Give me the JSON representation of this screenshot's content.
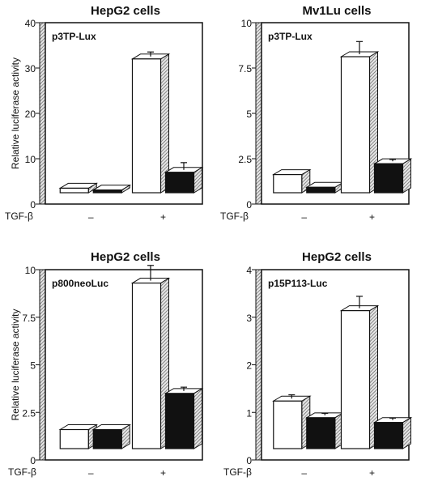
{
  "figure": {
    "x_axis_label": "TGF-β",
    "y_axis_label": "Relative luciferase activity",
    "colors": {
      "white_bar": "#ffffff",
      "black_bar": "#111111",
      "hatch": "#555555",
      "axis": "#111111"
    }
  },
  "chart_data": [
    {
      "type": "bar",
      "title": "HepG2 cells",
      "condition_label": "p3TP-Lux",
      "xlabel": "TGF-β",
      "ylabel": "Relative luciferase activity",
      "ylim": [
        0,
        40
      ],
      "yticks": [
        "0",
        "10",
        "20",
        "30",
        "40"
      ],
      "categories": [
        "–",
        "+"
      ],
      "series": [
        {
          "color": "white",
          "values": [
            1,
            29.5
          ],
          "errors": [
            0,
            1
          ]
        },
        {
          "color": "black",
          "values": [
            0.6,
            4.5
          ],
          "errors": [
            0,
            1.6
          ]
        }
      ]
    },
    {
      "type": "bar",
      "title": "Mv1Lu cells",
      "condition_label": "p3TP-Lux",
      "xlabel": "TGF-β",
      "ylabel": "",
      "ylim": [
        0,
        10
      ],
      "yticks": [
        "0",
        "2.5",
        "5",
        "7.5",
        "10"
      ],
      "categories": [
        "–",
        "+"
      ],
      "series": [
        {
          "color": "white",
          "values": [
            1,
            7.5
          ],
          "errors": [
            0,
            0.7
          ]
        },
        {
          "color": "black",
          "values": [
            0.3,
            1.6
          ],
          "errors": [
            0,
            0.1
          ]
        }
      ]
    },
    {
      "type": "bar",
      "title": "HepG2 cells",
      "condition_label": "p800neoLuc",
      "xlabel": "TGF-β",
      "ylabel": "Relative luciferase activity",
      "ylim": [
        0,
        10
      ],
      "yticks": [
        "0",
        "2.5",
        "5",
        "7.5",
        "10"
      ],
      "categories": [
        "–",
        "+"
      ],
      "series": [
        {
          "color": "white",
          "values": [
            1,
            8.7
          ],
          "errors": [
            0,
            0.8
          ]
        },
        {
          "color": "black",
          "values": [
            1,
            2.9
          ],
          "errors": [
            0,
            0.2
          ]
        }
      ]
    },
    {
      "type": "bar",
      "title": "HepG2 cells",
      "condition_label": "p15P113-Luc",
      "xlabel": "TGF-β",
      "ylabel": "",
      "ylim": [
        0,
        4
      ],
      "yticks": [
        "0",
        "1",
        "2",
        "3",
        "4"
      ],
      "categories": [
        "–",
        "+"
      ],
      "series": [
        {
          "color": "white",
          "values": [
            1,
            2.9
          ],
          "errors": [
            0.08,
            0.25
          ]
        },
        {
          "color": "black",
          "values": [
            0.65,
            0.55
          ],
          "errors": [
            0.04,
            0.04
          ]
        }
      ]
    }
  ]
}
